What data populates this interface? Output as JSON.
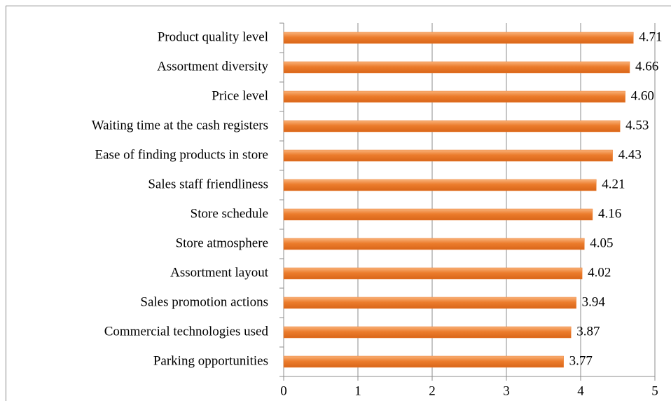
{
  "chart_data": {
    "type": "bar",
    "orientation": "horizontal",
    "categories": [
      "Product quality level",
      "Assortment diversity",
      "Price level",
      "Waiting time at the cash registers",
      "Ease of finding products in store",
      "Sales staff friendliness",
      "Store schedule",
      "Store atmosphere",
      "Assortment layout",
      "Sales promotion actions",
      "Commercial technologies used",
      "Parking opportunities"
    ],
    "values": [
      4.71,
      4.66,
      4.6,
      4.53,
      4.43,
      4.21,
      4.16,
      4.05,
      4.02,
      3.94,
      3.87,
      3.77
    ],
    "value_labels": [
      "4.71",
      "4.66",
      "4.60",
      "4.53",
      "4.43",
      "4.21",
      "4.16",
      "4.05",
      "4.02",
      "3.94",
      "3.87",
      "3.77"
    ],
    "color": "#ec7c2c",
    "xlim": [
      0,
      5
    ],
    "xticks": [
      0,
      1,
      2,
      3,
      4,
      5
    ],
    "grid": true
  }
}
